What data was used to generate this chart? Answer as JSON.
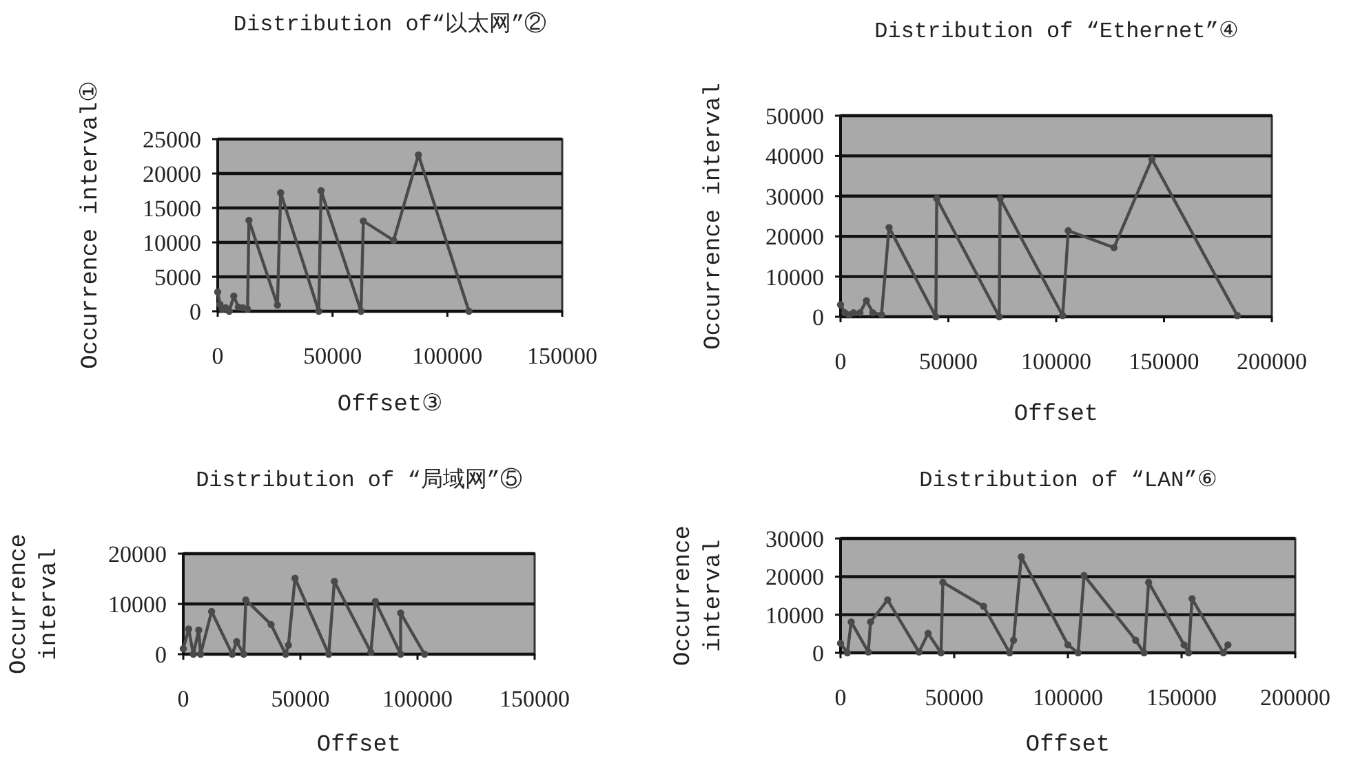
{
  "chart_data": [
    {
      "type": "line",
      "title": "Distribution of“以太网”②",
      "xlabel": "Offset③",
      "ylabel": "Occurrence interval①",
      "color": "#4a4a4a",
      "marker": "circle",
      "grid": "y",
      "xlim": [
        0,
        150000
      ],
      "ylim": [
        0,
        25000
      ],
      "xticks": [
        0,
        50000,
        100000,
        150000
      ],
      "yticks": [
        0,
        5000,
        10000,
        15000,
        20000,
        25000
      ],
      "x": [
        0,
        1000,
        2000,
        3500,
        5000,
        7000,
        9000,
        11000,
        13000,
        13600,
        26000,
        27400,
        44000,
        45000,
        62400,
        63400,
        76600,
        87400,
        109400
      ],
      "values": [
        2800,
        1000,
        300,
        500,
        0,
        2200,
        600,
        500,
        300,
        13200,
        900,
        17200,
        0,
        17500,
        0,
        13100,
        10300,
        22700,
        0
      ]
    },
    {
      "type": "line",
      "title": "Distribution of “Ethernet”④",
      "xlabel": "Offset",
      "ylabel": "Occurrence interval",
      "color": "#4a4a4a",
      "marker": "circle",
      "grid": "y",
      "xlim": [
        0,
        200000
      ],
      "ylim": [
        0,
        50000
      ],
      "xticks": [
        0,
        50000,
        100000,
        150000,
        200000
      ],
      "yticks": [
        0,
        10000,
        20000,
        30000,
        40000,
        50000
      ],
      "x": [
        0,
        2000,
        4000,
        6000,
        9000,
        12000,
        15000,
        19000,
        22500,
        44200,
        44600,
        73600,
        74000,
        103000,
        105600,
        126800,
        144400,
        184000
      ],
      "values": [
        3000,
        1000,
        500,
        1000,
        1000,
        4000,
        1000,
        500,
        22200,
        0,
        29400,
        0,
        29400,
        300,
        21400,
        17200,
        39200,
        300
      ]
    },
    {
      "type": "line",
      "title": "Distribution of “局域网”⑤",
      "xlabel": "Offset",
      "ylabel": "Occurrence interval",
      "color": "#4a4a4a",
      "marker": "circle",
      "grid": "y",
      "xlim": [
        0,
        150000
      ],
      "ylim": [
        0,
        20000
      ],
      "xticks": [
        0,
        50000,
        100000,
        150000
      ],
      "yticks": [
        0,
        10000,
        20000
      ],
      "x": [
        0,
        2300,
        4300,
        6600,
        7400,
        12100,
        20900,
        22800,
        25800,
        26700,
        37500,
        43700,
        44900,
        47700,
        62100,
        64500,
        80100,
        82000,
        92800,
        92800,
        103000
      ],
      "values": [
        1100,
        5000,
        0,
        4800,
        0,
        8500,
        0,
        2500,
        0,
        10800,
        5900,
        0,
        1800,
        15100,
        0,
        14500,
        400,
        10500,
        0,
        8200,
        0
      ]
    },
    {
      "type": "line",
      "title": "Distribution of “LAN”⑥",
      "xlabel": "Offset",
      "ylabel": "Occurrence interval",
      "color": "#4a4a4a",
      "marker": "circle",
      "grid": "y",
      "xlim": [
        0,
        200000
      ],
      "ylim": [
        0,
        30000
      ],
      "xticks": [
        0,
        50000,
        100000,
        150000,
        200000
      ],
      "yticks": [
        0,
        10000,
        20000,
        30000
      ],
      "x": [
        0,
        3000,
        4700,
        12200,
        13200,
        20700,
        34500,
        38500,
        44200,
        45000,
        62900,
        74400,
        76100,
        79500,
        100000,
        104500,
        107100,
        129800,
        133500,
        135500,
        151100,
        153100,
        154600,
        168400,
        170400
      ],
      "values": [
        2500,
        0,
        8100,
        200,
        8100,
        13900,
        200,
        5100,
        0,
        18500,
        12200,
        0,
        3300,
        25200,
        2100,
        0,
        20300,
        3300,
        0,
        18500,
        2100,
        0,
        14200,
        0,
        2100
      ]
    }
  ]
}
